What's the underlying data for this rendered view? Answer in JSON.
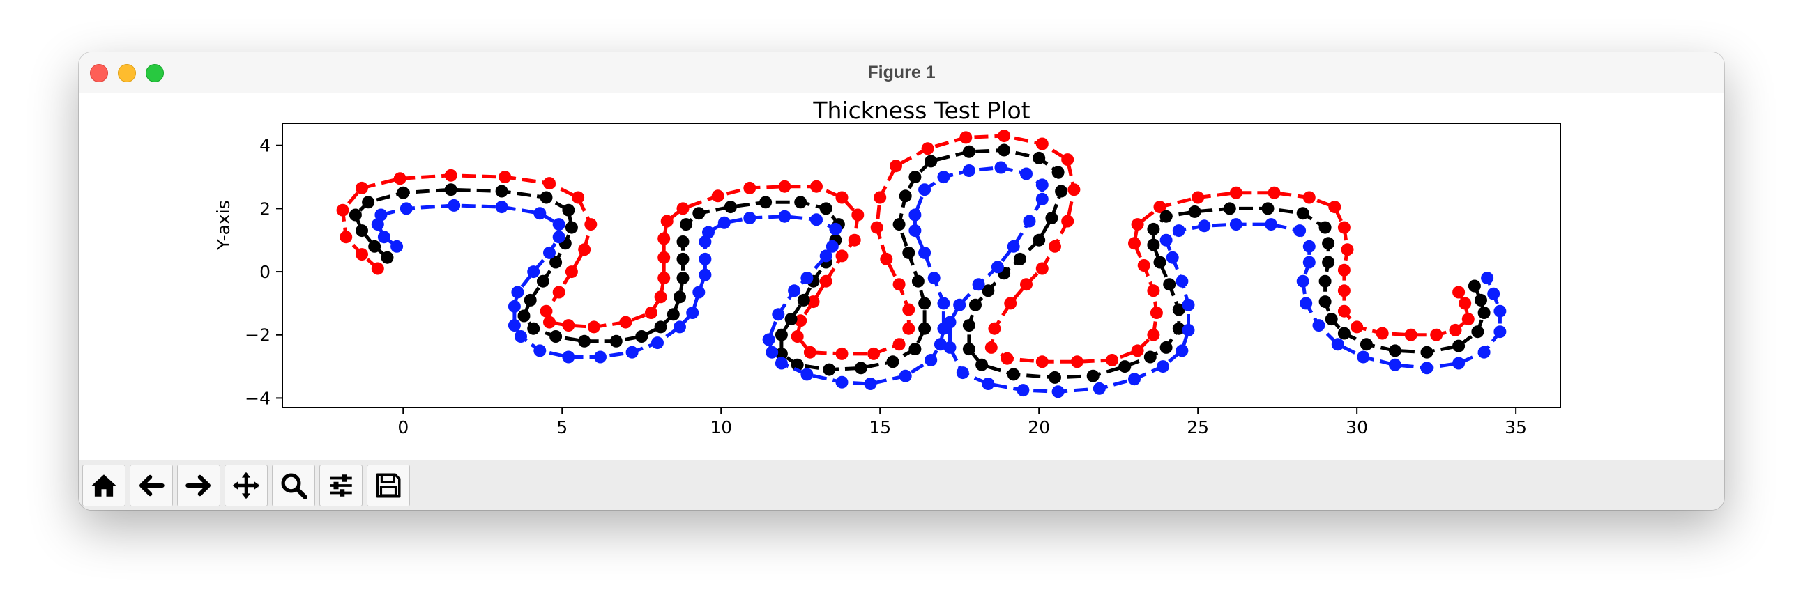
{
  "window": {
    "title": "Figure 1"
  },
  "toolbar": {
    "buttons": [
      {
        "name": "home",
        "icon": "home-icon"
      },
      {
        "name": "back",
        "icon": "arrow-left-icon"
      },
      {
        "name": "forward",
        "icon": "arrow-right-icon"
      },
      {
        "name": "pan",
        "icon": "move-icon"
      },
      {
        "name": "zoom",
        "icon": "magnifier-icon"
      },
      {
        "name": "configure-subplots",
        "icon": "sliders-icon"
      },
      {
        "name": "save",
        "icon": "floppy-disk-icon"
      }
    ]
  },
  "chart_data": {
    "type": "line",
    "title": "Thickness Test Plot",
    "xlabel": "",
    "ylabel": "Y-axis",
    "xlim": [
      -3.8,
      36.4
    ],
    "ylim": [
      -4.3,
      4.7
    ],
    "xticks": [
      0,
      5,
      10,
      15,
      20,
      25,
      30,
      35
    ],
    "yticks": [
      -4,
      -2,
      0,
      2,
      4
    ],
    "grid": false,
    "line_style": "dashed with circle markers",
    "series": [
      {
        "color": "#ff0000",
        "points": [
          [
            -0.8,
            0.1
          ],
          [
            -1.3,
            0.55
          ],
          [
            -1.8,
            1.1
          ],
          [
            -1.9,
            1.95
          ],
          [
            -1.3,
            2.65
          ],
          [
            -0.1,
            2.95
          ],
          [
            1.5,
            3.05
          ],
          [
            3.2,
            3.0
          ],
          [
            4.6,
            2.8
          ],
          [
            5.5,
            2.35
          ],
          [
            5.9,
            1.5
          ],
          [
            5.7,
            0.7
          ],
          [
            5.3,
            0.0
          ],
          [
            4.9,
            -0.65
          ],
          [
            4.5,
            -1.25
          ],
          [
            4.6,
            -1.6
          ],
          [
            5.2,
            -1.7
          ],
          [
            6.0,
            -1.75
          ],
          [
            7.0,
            -1.6
          ],
          [
            7.8,
            -1.3
          ],
          [
            8.1,
            -0.8
          ],
          [
            8.2,
            -0.2
          ],
          [
            8.2,
            0.45
          ],
          [
            8.2,
            1.05
          ],
          [
            8.3,
            1.6
          ],
          [
            8.8,
            2.0
          ],
          [
            9.9,
            2.4
          ],
          [
            10.9,
            2.65
          ],
          [
            12.0,
            2.7
          ],
          [
            13.0,
            2.7
          ],
          [
            13.8,
            2.35
          ],
          [
            14.3,
            1.8
          ],
          [
            14.2,
            1.0
          ],
          [
            13.8,
            0.5
          ],
          [
            13.3,
            -0.3
          ],
          [
            12.9,
            -0.95
          ],
          [
            12.5,
            -1.55
          ],
          [
            12.4,
            -2.05
          ],
          [
            12.8,
            -2.55
          ],
          [
            13.8,
            -2.6
          ],
          [
            14.8,
            -2.6
          ],
          [
            15.6,
            -2.3
          ],
          [
            15.9,
            -1.8
          ],
          [
            15.9,
            -1.2
          ],
          [
            15.6,
            -0.4
          ],
          [
            15.2,
            0.4
          ],
          [
            14.9,
            1.4
          ],
          [
            15.0,
            2.35
          ],
          [
            15.5,
            3.35
          ],
          [
            16.5,
            3.9
          ],
          [
            17.7,
            4.25
          ],
          [
            18.9,
            4.3
          ],
          [
            20.1,
            4.05
          ],
          [
            20.9,
            3.55
          ],
          [
            21.1,
            2.6
          ],
          [
            20.9,
            1.6
          ],
          [
            20.5,
            0.8
          ],
          [
            20.1,
            0.1
          ],
          [
            19.6,
            -0.4
          ],
          [
            19.1,
            -1.0
          ],
          [
            18.6,
            -1.8
          ],
          [
            18.5,
            -2.4
          ],
          [
            19.0,
            -2.75
          ],
          [
            20.1,
            -2.85
          ],
          [
            21.2,
            -2.85
          ],
          [
            22.3,
            -2.8
          ],
          [
            23.1,
            -2.5
          ],
          [
            23.6,
            -2.0
          ],
          [
            23.7,
            -1.3
          ],
          [
            23.6,
            -0.6
          ],
          [
            23.3,
            0.2
          ],
          [
            23.0,
            0.9
          ],
          [
            23.1,
            1.5
          ],
          [
            23.8,
            2.05
          ],
          [
            25.0,
            2.35
          ],
          [
            26.2,
            2.5
          ],
          [
            27.4,
            2.5
          ],
          [
            28.5,
            2.35
          ],
          [
            29.3,
            2.05
          ],
          [
            29.6,
            1.4
          ],
          [
            29.7,
            0.7
          ],
          [
            29.6,
            0.05
          ],
          [
            29.6,
            -0.6
          ],
          [
            29.6,
            -1.25
          ],
          [
            30.0,
            -1.75
          ],
          [
            30.8,
            -1.95
          ],
          [
            31.7,
            -2.0
          ],
          [
            32.5,
            -2.0
          ],
          [
            33.1,
            -1.85
          ],
          [
            33.5,
            -1.5
          ],
          [
            33.4,
            -1.0
          ],
          [
            33.2,
            -0.65
          ]
        ]
      },
      {
        "color": "#000000",
        "points": [
          [
            -0.5,
            0.45
          ],
          [
            -0.9,
            0.8
          ],
          [
            -1.3,
            1.3
          ],
          [
            -1.5,
            1.8
          ],
          [
            -1.1,
            2.2
          ],
          [
            0.0,
            2.5
          ],
          [
            1.5,
            2.6
          ],
          [
            3.1,
            2.55
          ],
          [
            4.5,
            2.35
          ],
          [
            5.2,
            1.95
          ],
          [
            5.3,
            1.4
          ],
          [
            5.1,
            0.9
          ],
          [
            4.8,
            0.3
          ],
          [
            4.4,
            -0.3
          ],
          [
            4.0,
            -0.9
          ],
          [
            3.8,
            -1.4
          ],
          [
            4.1,
            -1.8
          ],
          [
            4.8,
            -2.05
          ],
          [
            5.7,
            -2.2
          ],
          [
            6.7,
            -2.2
          ],
          [
            7.5,
            -2.05
          ],
          [
            8.1,
            -1.75
          ],
          [
            8.5,
            -1.35
          ],
          [
            8.7,
            -0.8
          ],
          [
            8.8,
            -0.2
          ],
          [
            8.8,
            0.4
          ],
          [
            8.8,
            0.95
          ],
          [
            8.9,
            1.5
          ],
          [
            9.3,
            1.85
          ],
          [
            10.3,
            2.05
          ],
          [
            11.4,
            2.2
          ],
          [
            12.5,
            2.2
          ],
          [
            13.3,
            2.0
          ],
          [
            13.7,
            1.5
          ],
          [
            13.6,
            1.0
          ],
          [
            13.3,
            0.3
          ],
          [
            12.9,
            -0.3
          ],
          [
            12.6,
            -0.9
          ],
          [
            12.2,
            -1.5
          ],
          [
            11.9,
            -2.0
          ],
          [
            11.9,
            -2.6
          ],
          [
            12.4,
            -2.95
          ],
          [
            13.4,
            -3.1
          ],
          [
            14.4,
            -3.05
          ],
          [
            15.4,
            -2.85
          ],
          [
            16.1,
            -2.45
          ],
          [
            16.4,
            -1.8
          ],
          [
            16.4,
            -1.0
          ],
          [
            16.2,
            -0.3
          ],
          [
            15.9,
            0.6
          ],
          [
            15.6,
            1.5
          ],
          [
            15.8,
            2.4
          ],
          [
            16.1,
            3.0
          ],
          [
            16.6,
            3.5
          ],
          [
            17.8,
            3.8
          ],
          [
            18.9,
            3.85
          ],
          [
            20.0,
            3.6
          ],
          [
            20.6,
            3.15
          ],
          [
            20.7,
            2.55
          ],
          [
            20.4,
            1.7
          ],
          [
            20.0,
            1.0
          ],
          [
            19.4,
            0.4
          ],
          [
            18.9,
            -0.05
          ],
          [
            18.4,
            -0.6
          ],
          [
            18.0,
            -1.05
          ],
          [
            17.8,
            -1.7
          ],
          [
            17.8,
            -2.45
          ],
          [
            18.2,
            -2.95
          ],
          [
            19.2,
            -3.25
          ],
          [
            20.5,
            -3.35
          ],
          [
            21.7,
            -3.3
          ],
          [
            22.7,
            -3.0
          ],
          [
            23.5,
            -2.7
          ],
          [
            24.0,
            -2.4
          ],
          [
            24.4,
            -1.8
          ],
          [
            24.4,
            -1.2
          ],
          [
            24.1,
            -0.4
          ],
          [
            23.8,
            0.3
          ],
          [
            23.6,
            0.85
          ],
          [
            23.6,
            1.35
          ],
          [
            24.0,
            1.75
          ],
          [
            24.9,
            1.9
          ],
          [
            26.0,
            2.0
          ],
          [
            27.2,
            2.0
          ],
          [
            28.3,
            1.85
          ],
          [
            29.0,
            1.4
          ],
          [
            29.1,
            0.9
          ],
          [
            29.1,
            0.3
          ],
          [
            29.0,
            -0.3
          ],
          [
            29.0,
            -0.95
          ],
          [
            29.2,
            -1.5
          ],
          [
            29.6,
            -1.95
          ],
          [
            30.3,
            -2.3
          ],
          [
            31.2,
            -2.5
          ],
          [
            32.2,
            -2.55
          ],
          [
            33.2,
            -2.35
          ],
          [
            33.8,
            -1.9
          ],
          [
            34.0,
            -1.3
          ],
          [
            33.9,
            -0.9
          ],
          [
            33.7,
            -0.45
          ]
        ]
      },
      {
        "color": "#0a1eff",
        "points": [
          [
            -0.2,
            0.8
          ],
          [
            -0.6,
            1.1
          ],
          [
            -0.8,
            1.5
          ],
          [
            -0.7,
            1.8
          ],
          [
            0.1,
            2.0
          ],
          [
            1.6,
            2.1
          ],
          [
            3.1,
            2.05
          ],
          [
            4.3,
            1.85
          ],
          [
            4.9,
            1.5
          ],
          [
            4.9,
            1.1
          ],
          [
            4.6,
            0.6
          ],
          [
            4.1,
            0.0
          ],
          [
            3.6,
            -0.65
          ],
          [
            3.5,
            -1.1
          ],
          [
            3.5,
            -1.7
          ],
          [
            3.7,
            -2.05
          ],
          [
            4.3,
            -2.5
          ],
          [
            5.2,
            -2.7
          ],
          [
            6.2,
            -2.7
          ],
          [
            7.2,
            -2.55
          ],
          [
            8.0,
            -2.25
          ],
          [
            8.7,
            -1.75
          ],
          [
            9.1,
            -1.3
          ],
          [
            9.3,
            -0.65
          ],
          [
            9.5,
            -0.1
          ],
          [
            9.5,
            0.4
          ],
          [
            9.5,
            0.95
          ],
          [
            9.6,
            1.25
          ],
          [
            10.1,
            1.55
          ],
          [
            10.9,
            1.7
          ],
          [
            12.0,
            1.75
          ],
          [
            13.0,
            1.65
          ],
          [
            13.6,
            1.35
          ],
          [
            13.5,
            0.8
          ],
          [
            13.3,
            0.5
          ],
          [
            12.7,
            -0.2
          ],
          [
            12.3,
            -0.6
          ],
          [
            11.8,
            -1.35
          ],
          [
            11.5,
            -2.15
          ],
          [
            11.6,
            -2.55
          ],
          [
            11.9,
            -2.9
          ],
          [
            12.7,
            -3.25
          ],
          [
            13.8,
            -3.5
          ],
          [
            14.7,
            -3.55
          ],
          [
            15.8,
            -3.3
          ],
          [
            16.6,
            -2.8
          ],
          [
            16.9,
            -2.3
          ],
          [
            17.0,
            -1.8
          ],
          [
            17.0,
            -1.0
          ],
          [
            16.7,
            -0.2
          ],
          [
            16.4,
            0.6
          ],
          [
            16.1,
            1.3
          ],
          [
            16.1,
            1.8
          ],
          [
            16.4,
            2.6
          ],
          [
            17.0,
            3.0
          ],
          [
            17.8,
            3.2
          ],
          [
            18.8,
            3.3
          ],
          [
            19.6,
            3.1
          ],
          [
            20.1,
            2.75
          ],
          [
            20.1,
            2.3
          ],
          [
            19.7,
            1.6
          ],
          [
            19.2,
            0.8
          ],
          [
            18.7,
            0.15
          ],
          [
            18.1,
            -0.4
          ],
          [
            17.5,
            -1.05
          ],
          [
            17.2,
            -1.6
          ],
          [
            17.2,
            -2.4
          ],
          [
            17.6,
            -3.2
          ],
          [
            18.4,
            -3.55
          ],
          [
            19.5,
            -3.75
          ],
          [
            20.6,
            -3.8
          ],
          [
            21.9,
            -3.7
          ],
          [
            23.0,
            -3.4
          ],
          [
            23.9,
            -3.0
          ],
          [
            24.5,
            -2.5
          ],
          [
            24.7,
            -1.85
          ],
          [
            24.7,
            -1.05
          ],
          [
            24.5,
            -0.3
          ],
          [
            24.2,
            0.45
          ],
          [
            24.0,
            1.0
          ],
          [
            24.4,
            1.3
          ],
          [
            25.2,
            1.45
          ],
          [
            26.2,
            1.5
          ],
          [
            27.3,
            1.5
          ],
          [
            28.2,
            1.3
          ],
          [
            28.5,
            0.8
          ],
          [
            28.5,
            0.3
          ],
          [
            28.3,
            -0.3
          ],
          [
            28.4,
            -1.0
          ],
          [
            28.8,
            -1.7
          ],
          [
            29.4,
            -2.3
          ],
          [
            30.2,
            -2.7
          ],
          [
            31.2,
            -2.95
          ],
          [
            32.2,
            -3.05
          ],
          [
            33.2,
            -2.9
          ],
          [
            34.0,
            -2.55
          ],
          [
            34.5,
            -1.9
          ],
          [
            34.5,
            -1.25
          ],
          [
            34.3,
            -0.7
          ],
          [
            34.1,
            -0.2
          ]
        ]
      }
    ]
  }
}
